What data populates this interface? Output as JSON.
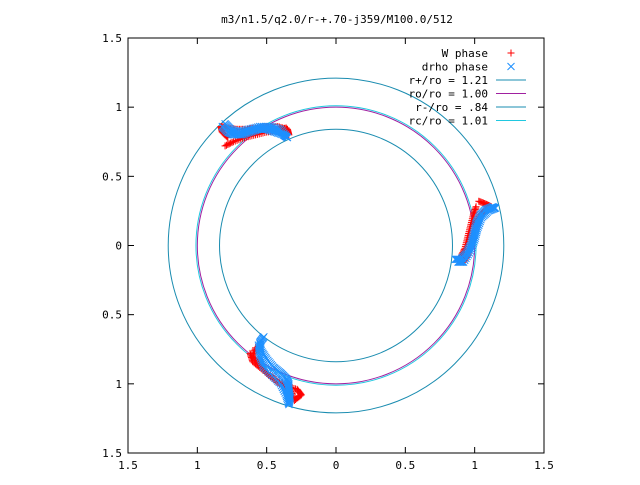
{
  "chart_data": {
    "type": "scatter",
    "title": "m3/n1.5/q2.0/r-+.70-j359/M100.0/512",
    "xlim": [
      -1.5,
      1.5
    ],
    "ylim": [
      -1.5,
      1.5
    ],
    "aspect": "equal",
    "grid": false,
    "legend_position": "top-right",
    "x_ticks": [
      {
        "value": -1.5,
        "label": "1.5"
      },
      {
        "value": -1.0,
        "label": "1"
      },
      {
        "value": -0.5,
        "label": "0.5"
      },
      {
        "value": 0,
        "label": "0"
      },
      {
        "value": 0.5,
        "label": "0.5"
      },
      {
        "value": 1.0,
        "label": "1"
      },
      {
        "value": 1.5,
        "label": "1.5"
      }
    ],
    "y_ticks": [
      {
        "value": -1.5,
        "label": "1.5"
      },
      {
        "value": -1.0,
        "label": "1"
      },
      {
        "value": -0.5,
        "label": "0.5"
      },
      {
        "value": 0,
        "label": "0"
      },
      {
        "value": 0.5,
        "label": "0.5"
      },
      {
        "value": 1.0,
        "label": "1"
      },
      {
        "value": 1.5,
        "label": "1.5"
      }
    ],
    "series": [
      {
        "name": "W phase",
        "kind": "points",
        "marker": "plus",
        "color": "#ff0000",
        "arms": [
          [
            [
              -0.78,
              0.78
            ],
            [
              -0.82,
              0.82
            ],
            [
              -0.83,
              0.86
            ],
            [
              -0.78,
              0.85
            ],
            [
              -0.72,
              0.84
            ],
            [
              -0.65,
              0.84
            ],
            [
              -0.58,
              0.85
            ],
            [
              -0.5,
              0.86
            ],
            [
              -0.42,
              0.86
            ],
            [
              -0.35,
              0.84
            ],
            [
              -0.34,
              0.8
            ],
            [
              -0.36,
              0.85
            ],
            [
              -0.42,
              0.83
            ],
            [
              -0.5,
              0.82
            ],
            [
              -0.58,
              0.8
            ],
            [
              -0.66,
              0.78
            ],
            [
              -0.74,
              0.75
            ],
            [
              -0.8,
              0.72
            ]
          ],
          [
            [
              1.03,
              0.32
            ],
            [
              1.08,
              0.3
            ],
            [
              1.12,
              0.28
            ],
            [
              1.08,
              0.26
            ],
            [
              1.04,
              0.22
            ],
            [
              1.0,
              0.15
            ],
            [
              0.98,
              0.07
            ],
            [
              0.97,
              -0.01
            ],
            [
              0.95,
              -0.07
            ],
            [
              0.92,
              -0.12
            ],
            [
              0.88,
              -0.11
            ],
            [
              0.9,
              -0.08
            ],
            [
              0.93,
              -0.02
            ],
            [
              0.95,
              0.06
            ],
            [
              0.97,
              0.14
            ],
            [
              0.99,
              0.22
            ],
            [
              1.01,
              0.28
            ]
          ],
          [
            [
              -0.58,
              -0.74
            ],
            [
              -0.6,
              -0.8
            ],
            [
              -0.55,
              -0.86
            ],
            [
              -0.5,
              -0.92
            ],
            [
              -0.42,
              -0.98
            ],
            [
              -0.35,
              -1.02
            ],
            [
              -0.28,
              -1.04
            ],
            [
              -0.25,
              -1.08
            ],
            [
              -0.3,
              -1.12
            ],
            [
              -0.32,
              -1.06
            ],
            [
              -0.38,
              -1.02
            ],
            [
              -0.46,
              -0.96
            ],
            [
              -0.54,
              -0.89
            ],
            [
              -0.6,
              -0.84
            ],
            [
              -0.62,
              -0.78
            ]
          ]
        ]
      },
      {
        "name": "drho phase",
        "kind": "points",
        "marker": "cross",
        "color": "#1e90ff",
        "arms": [
          [
            [
              -0.82,
              0.86
            ],
            [
              -0.78,
              0.82
            ],
            [
              -0.74,
              0.8
            ],
            [
              -0.68,
              0.8
            ],
            [
              -0.62,
              0.82
            ],
            [
              -0.56,
              0.84
            ],
            [
              -0.5,
              0.84
            ],
            [
              -0.44,
              0.82
            ],
            [
              -0.38,
              0.8
            ],
            [
              -0.35,
              0.78
            ],
            [
              -0.4,
              0.84
            ],
            [
              -0.47,
              0.86
            ],
            [
              -0.55,
              0.86
            ],
            [
              -0.63,
              0.84
            ],
            [
              -0.7,
              0.82
            ],
            [
              -0.76,
              0.84
            ],
            [
              -0.8,
              0.88
            ]
          ],
          [
            [
              0.86,
              -0.1
            ],
            [
              0.9,
              -0.1
            ],
            [
              0.94,
              -0.06
            ],
            [
              0.97,
              0.0
            ],
            [
              0.99,
              0.08
            ],
            [
              1.01,
              0.16
            ],
            [
              1.04,
              0.22
            ],
            [
              1.08,
              0.26
            ],
            [
              1.13,
              0.28
            ],
            [
              1.15,
              0.27
            ],
            [
              1.1,
              0.25
            ],
            [
              1.05,
              0.2
            ],
            [
              1.02,
              0.12
            ],
            [
              1.0,
              0.04
            ],
            [
              0.97,
              -0.04
            ],
            [
              0.92,
              -0.12
            ],
            [
              0.88,
              -0.12
            ]
          ],
          [
            [
              -0.52,
              -0.66
            ],
            [
              -0.55,
              -0.7
            ],
            [
              -0.54,
              -0.76
            ],
            [
              -0.5,
              -0.82
            ],
            [
              -0.45,
              -0.88
            ],
            [
              -0.4,
              -0.92
            ],
            [
              -0.36,
              -0.96
            ],
            [
              -0.34,
              -1.0
            ],
            [
              -0.34,
              -1.05
            ],
            [
              -0.33,
              -1.1
            ],
            [
              -0.34,
              -1.15
            ],
            [
              -0.36,
              -1.08
            ],
            [
              -0.4,
              -1.0
            ],
            [
              -0.46,
              -0.94
            ],
            [
              -0.52,
              -0.88
            ],
            [
              -0.55,
              -0.8
            ],
            [
              -0.56,
              -0.72
            ]
          ]
        ]
      },
      {
        "name": "r+/ro = 1.21",
        "kind": "circle",
        "radius": 1.21,
        "color": "#1a8cb0"
      },
      {
        "name": "ro/ro = 1.00",
        "kind": "circle",
        "radius": 1.0,
        "color": "#a020a0"
      },
      {
        "name": "r-/ro = .84",
        "kind": "circle",
        "radius": 0.84,
        "color": "#1a8cb0"
      },
      {
        "name": "rc/ro = 1.01",
        "kind": "circle",
        "radius": 1.01,
        "color": "#20c8e0"
      }
    ]
  }
}
